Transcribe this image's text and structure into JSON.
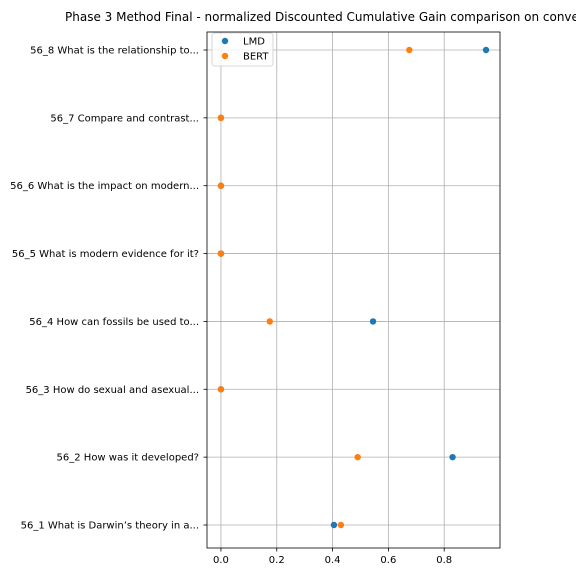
{
  "chart_data": {
    "type": "scatter",
    "title": "Phase 3 Method Final - normalized Discounted Cumulative Gain comparison on conve",
    "xlabel": "",
    "ylabel": "",
    "xlim": [
      -0.05,
      1.0
    ],
    "x_ticks": [
      0.0,
      0.2,
      0.4,
      0.6,
      0.8
    ],
    "x_tick_labels": [
      "0.0",
      "0.2",
      "0.4",
      "0.6",
      "0.8"
    ],
    "grid": true,
    "legend_position": "top-left",
    "categories": [
      "56_1 What is Darwin’s theory in a...",
      "56_2 How was it developed?",
      "56_3 How do sexual and asexual...",
      "56_4 How can fossils be used to...",
      "56_5 What is modern evidence for it?",
      "56_6 What is the impact on modern...",
      "56_7 Compare and contrast...",
      "56_8 What is the relationship to..."
    ],
    "series": [
      {
        "name": "LMD",
        "color": "#1f77b4",
        "values": [
          0.405,
          0.83,
          0.0,
          0.545,
          0.0,
          0.0,
          0.0,
          0.95
        ]
      },
      {
        "name": "BERT",
        "color": "#ff7f0e",
        "values": [
          0.43,
          0.49,
          0.0,
          0.175,
          0.0,
          0.0,
          0.0,
          0.675
        ]
      }
    ]
  }
}
